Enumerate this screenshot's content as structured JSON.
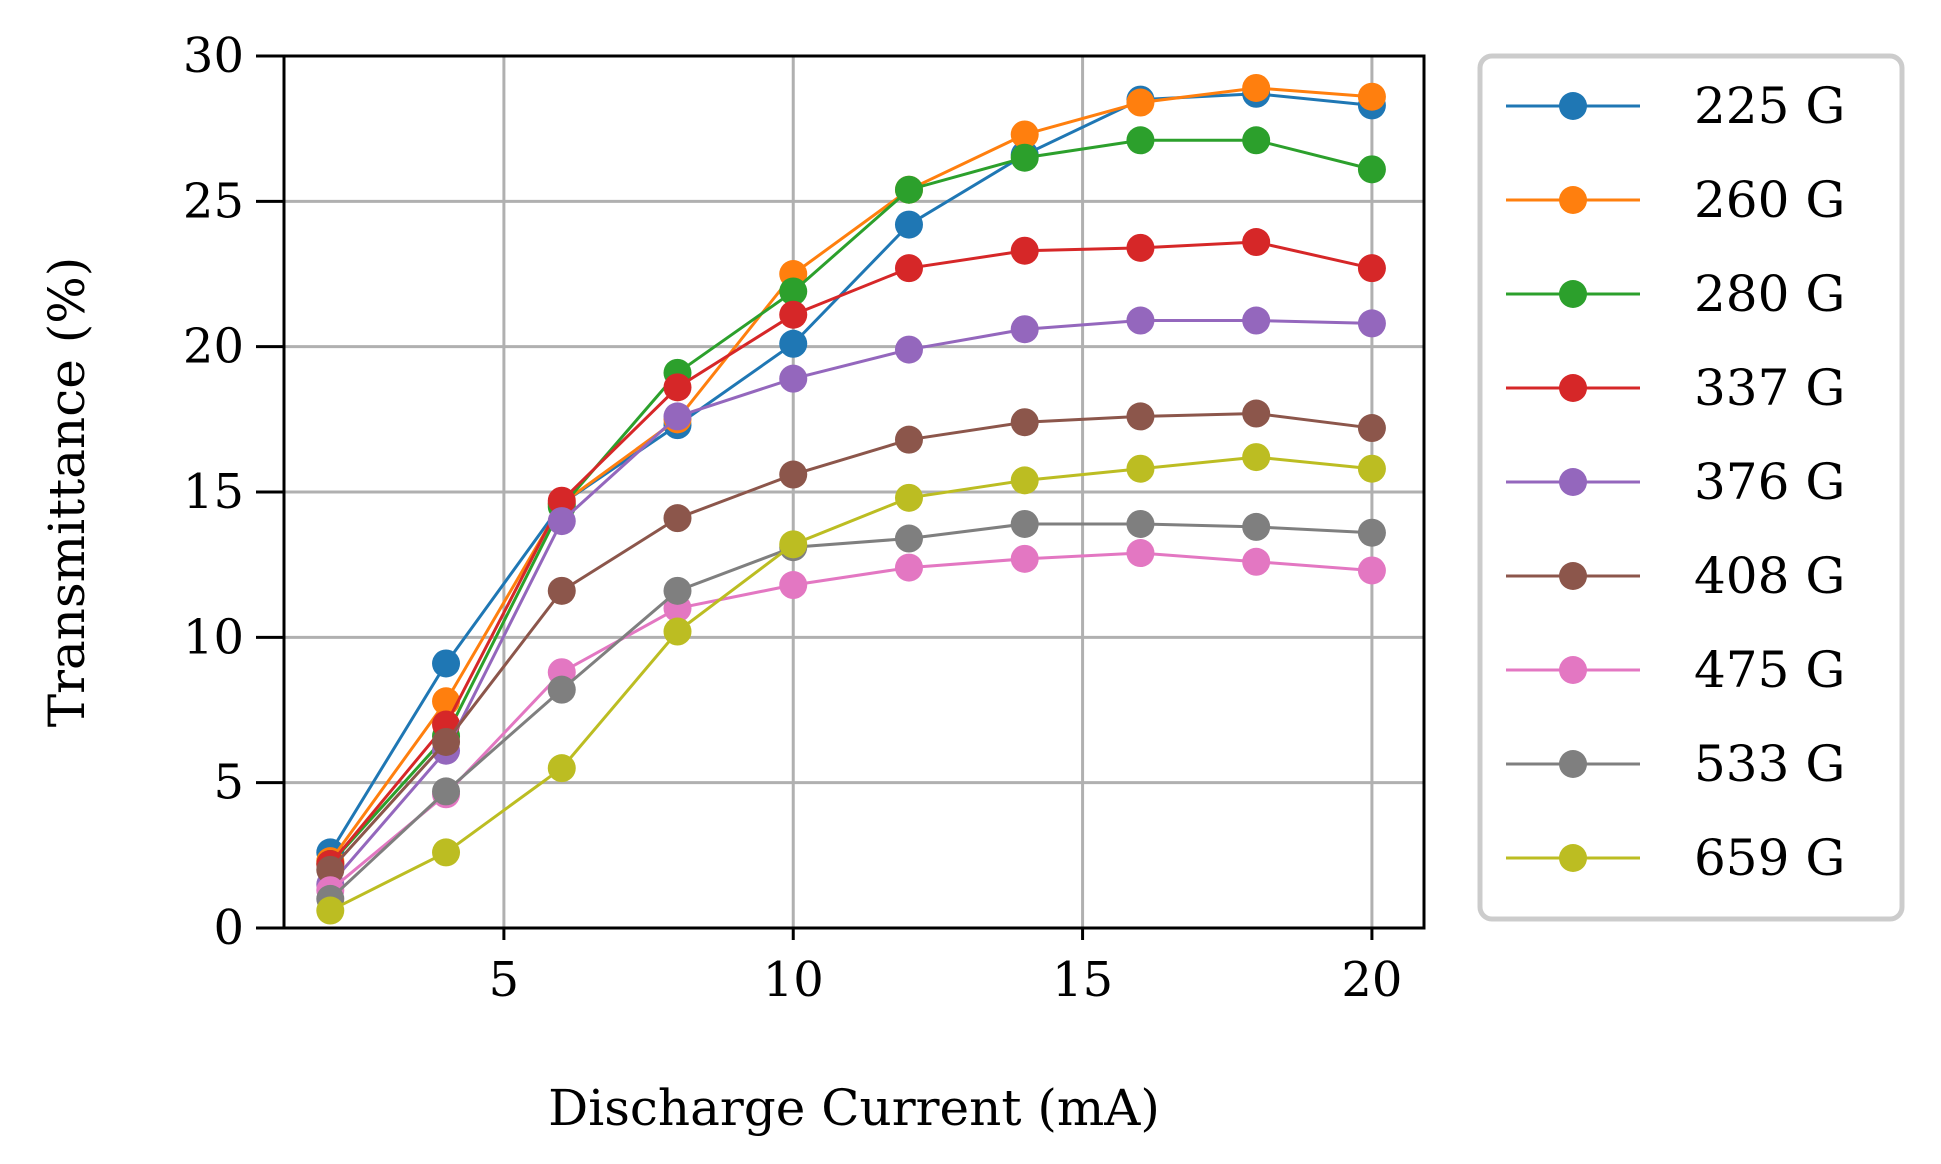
{
  "chart_data": {
    "type": "line",
    "title": "",
    "xlabel": "Discharge Current (mA)",
    "ylabel": "Transmittance (%)",
    "xlim": [
      1.2,
      20.9
    ],
    "ylim": [
      0,
      30
    ],
    "xticks": [
      5,
      10,
      15,
      20
    ],
    "yticks": [
      0,
      5,
      10,
      15,
      20,
      25,
      30
    ],
    "grid": true,
    "legend_position": "outside-right",
    "x": [
      2,
      4,
      6,
      8,
      10,
      12,
      14,
      16,
      18,
      20
    ],
    "series": [
      {
        "name": "225 G",
        "color": "#1f77b4",
        "values": [
          2.6,
          9.1,
          14.6,
          17.3,
          20.1,
          24.2,
          26.6,
          28.5,
          28.7,
          28.3
        ]
      },
      {
        "name": "260 G",
        "color": "#ff7f0e",
        "values": [
          2.3,
          7.8,
          14.6,
          17.5,
          22.5,
          25.4,
          27.3,
          28.4,
          28.9,
          28.6
        ]
      },
      {
        "name": "280 G",
        "color": "#2ca02c",
        "values": [
          2.2,
          6.6,
          14.5,
          19.1,
          21.9,
          25.4,
          26.5,
          27.1,
          27.1,
          26.1
        ]
      },
      {
        "name": "337 G",
        "color": "#d62728",
        "values": [
          2.2,
          7.0,
          14.7,
          18.6,
          21.1,
          22.7,
          23.3,
          23.4,
          23.6,
          22.7
        ]
      },
      {
        "name": "376 G",
        "color": "#9467bd",
        "values": [
          1.5,
          6.1,
          14.0,
          17.6,
          18.9,
          19.9,
          20.6,
          20.9,
          20.9,
          20.8
        ]
      },
      {
        "name": "408 G",
        "color": "#8c564b",
        "values": [
          2.0,
          6.4,
          11.6,
          14.1,
          15.6,
          16.8,
          17.4,
          17.6,
          17.7,
          17.2
        ]
      },
      {
        "name": "475 G",
        "color": "#e377c2",
        "values": [
          1.3,
          4.6,
          8.8,
          11.0,
          11.8,
          12.4,
          12.7,
          12.9,
          12.6,
          12.3
        ]
      },
      {
        "name": "533 G",
        "color": "#7f7f7f",
        "values": [
          1.0,
          4.7,
          8.2,
          11.6,
          13.1,
          13.4,
          13.9,
          13.9,
          13.8,
          13.6
        ]
      },
      {
        "name": "659 G",
        "color": "#bcbd22",
        "values": [
          0.6,
          2.6,
          5.5,
          10.2,
          13.2,
          14.8,
          15.4,
          15.8,
          16.2,
          15.8
        ]
      }
    ]
  }
}
